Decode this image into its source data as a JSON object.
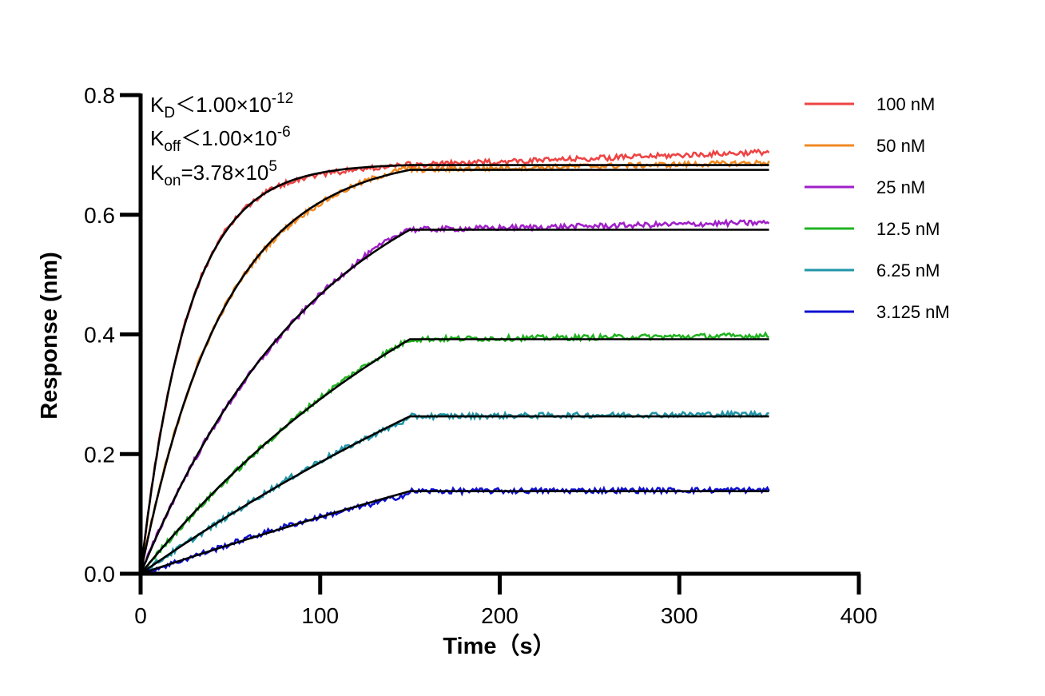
{
  "chart_data": {
    "type": "line",
    "title": "",
    "xlabel": "Time（s）",
    "ylabel": "Response (nm)",
    "xlim": [
      0,
      400
    ],
    "ylim": [
      0,
      0.8
    ],
    "x_ticks": [
      0,
      100,
      200,
      300,
      400
    ],
    "y_ticks": [
      0.0,
      0.2,
      0.4,
      0.6,
      0.8
    ],
    "x_tick_labels": [
      "0",
      "100",
      "200",
      "300",
      "400"
    ],
    "y_tick_labels": [
      "0.0",
      "0.2",
      "0.4",
      "0.6",
      "0.8"
    ],
    "grid": false,
    "legend_position": "right",
    "annotations": {
      "kd": {
        "main": "K",
        "sub": "D",
        "text": "＜1.00×10",
        "sup": "-12"
      },
      "koff": {
        "main": "K",
        "sub": "off",
        "text": "＜1.00×10",
        "sup": "-6"
      },
      "kon": {
        "main": "K",
        "sub": "on",
        "text": "=3.78×10",
        "sup": "5"
      }
    },
    "association_end": 150,
    "x_end": 350,
    "fit_color": "#000000",
    "series": [
      {
        "name": "100 nM",
        "color": "#EE4444",
        "plateau": 0.683,
        "rate": 0.038,
        "drift": 0.022
      },
      {
        "name": "50 nM",
        "color": "#F08A24",
        "plateau": 0.675,
        "rate": 0.0215,
        "drift": 0.012
      },
      {
        "name": "25 nM",
        "color": "#A020C8",
        "plateau": 0.575,
        "rate": 0.0098,
        "drift": 0.012
      },
      {
        "name": "12.5 nM",
        "color": "#22B322",
        "plateau": 0.392,
        "rate": 0.0049,
        "drift": 0.006
      },
      {
        "name": "6.25 nM",
        "color": "#2196A8",
        "plateau": 0.263,
        "rate": 0.0025,
        "drift": 0.004
      },
      {
        "name": "3.125 nM",
        "color": "#1010D0",
        "plateau": 0.138,
        "rate": 0.0012,
        "drift": 0.002
      }
    ]
  }
}
